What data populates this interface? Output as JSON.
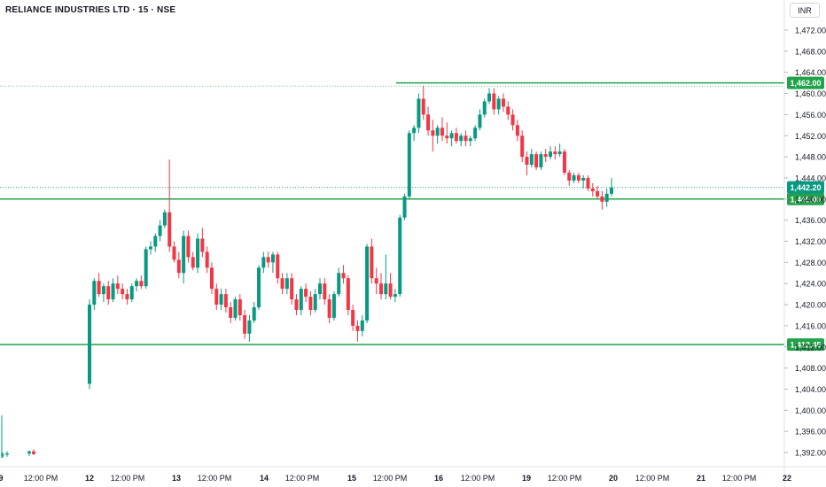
{
  "header": {
    "symbol_title": "RELIANCE INDUSTRIES LTD · 15 · NSE",
    "currency_button": "INR"
  },
  "chart_data": {
    "type": "candlestick",
    "y_axis": {
      "ticks": [
        "1,472.00",
        "1,468.00",
        "1,464.00",
        "1,460.00",
        "1,456.00",
        "1,452.00",
        "1,448.00",
        "1,444.00",
        "1,440.00",
        "1,436.00",
        "1,432.00",
        "1,428.00",
        "1,424.00",
        "1,420.00",
        "1,416.00",
        "1,412.00",
        "1,408.00",
        "1,404.00",
        "1,400.00",
        "1,396.00",
        "1,392.00"
      ],
      "range": [
        1390.5,
        1475.5
      ]
    },
    "x_axis": {
      "ticks": [
        "9",
        "12:00 PM",
        "12",
        "12:00 PM",
        "13",
        "12:00 PM",
        "14",
        "12:00 PM",
        "15",
        "12:00 PM",
        "16",
        "12:00 PM",
        "19",
        "12:00 PM",
        "20",
        "12:00 PM",
        "21",
        "12:00 PM",
        "22"
      ]
    },
    "horizontal_lines": [
      {
        "value": 1462.0,
        "label": "1,462.00",
        "style": "solid",
        "color": "#22a34a"
      },
      {
        "value": 1440.0,
        "label": "1,440.00",
        "style": "solid",
        "color": "#22a34a"
      },
      {
        "value": 1412.45,
        "label": "1,412.45",
        "style": "solid",
        "color": "#22a34a"
      }
    ],
    "last_price": {
      "value": 1442.2,
      "label": "1,442.20",
      "color": "#089981"
    },
    "colors": {
      "up": "#089981",
      "down": "#f23645"
    },
    "candles": [
      [
        1391.5,
        1392.0,
        1391.0,
        1391.6
      ],
      [
        1391.6,
        1392.2,
        1391.2,
        1391.8
      ],
      [
        1391.8,
        1392.4,
        1391.3,
        1392.2
      ],
      [
        1392.2,
        1392.6,
        1391.5,
        1391.7
      ],
      [
        1405.0,
        1421.0,
        1404.0,
        1420.0
      ],
      [
        1420.0,
        1425.0,
        1419.0,
        1424.5
      ],
      [
        1424.5,
        1426.0,
        1421.5,
        1422.0
      ],
      [
        1422.0,
        1424.0,
        1420.5,
        1423.5
      ],
      [
        1423.5,
        1424.5,
        1420.0,
        1421.0
      ],
      [
        1421.0,
        1425.0,
        1420.5,
        1424.0
      ],
      [
        1424.0,
        1425.5,
        1422.0,
        1423.0
      ],
      [
        1423.0,
        1424.0,
        1421.0,
        1422.0
      ],
      [
        1422.0,
        1423.0,
        1420.0,
        1421.0
      ],
      [
        1421.0,
        1424.0,
        1420.5,
        1423.5
      ],
      [
        1423.5,
        1425.0,
        1422.5,
        1424.5
      ],
      [
        1424.5,
        1425.5,
        1423.0,
        1423.5
      ],
      [
        1423.5,
        1431.0,
        1423.0,
        1430.5
      ],
      [
        1430.5,
        1432.0,
        1429.5,
        1431.0
      ],
      [
        1431.0,
        1433.5,
        1430.0,
        1433.0
      ],
      [
        1433.0,
        1436.0,
        1432.0,
        1435.0
      ],
      [
        1435.0,
        1438.0,
        1434.5,
        1437.5
      ],
      [
        1437.5,
        1447.5,
        1430.0,
        1431.0
      ],
      [
        1431.0,
        1432.0,
        1428.0,
        1428.5
      ],
      [
        1428.5,
        1430.0,
        1425.0,
        1426.0
      ],
      [
        1426.0,
        1434.0,
        1424.0,
        1433.0
      ],
      [
        1433.0,
        1434.0,
        1428.0,
        1429.0
      ],
      [
        1429.0,
        1430.0,
        1426.5,
        1427.0
      ],
      [
        1427.0,
        1433.5,
        1426.0,
        1432.5
      ],
      [
        1432.5,
        1434.5,
        1429.0,
        1430.0
      ],
      [
        1430.0,
        1431.0,
        1426.0,
        1427.0
      ],
      [
        1427.0,
        1428.0,
        1422.0,
        1423.0
      ],
      [
        1423.0,
        1424.0,
        1419.0,
        1420.0
      ],
      [
        1420.0,
        1423.0,
        1419.0,
        1422.0
      ],
      [
        1422.0,
        1423.0,
        1418.5,
        1419.5
      ],
      [
        1419.5,
        1420.5,
        1416.5,
        1417.5
      ],
      [
        1417.5,
        1421.5,
        1417.0,
        1421.0
      ],
      [
        1421.0,
        1422.0,
        1417.0,
        1418.0
      ],
      [
        1418.0,
        1419.0,
        1413.5,
        1414.5
      ],
      [
        1414.5,
        1418.0,
        1413.0,
        1417.0
      ],
      [
        1417.0,
        1420.5,
        1416.5,
        1419.5
      ],
      [
        1419.5,
        1427.5,
        1419.0,
        1427.0
      ],
      [
        1427.0,
        1430.0,
        1426.0,
        1429.0
      ],
      [
        1429.0,
        1430.0,
        1427.0,
        1428.0
      ],
      [
        1428.0,
        1430.0,
        1426.0,
        1429.5
      ],
      [
        1429.5,
        1430.0,
        1424.0,
        1425.0
      ],
      [
        1425.0,
        1426.0,
        1422.0,
        1423.0
      ],
      [
        1423.0,
        1426.0,
        1422.0,
        1425.0
      ],
      [
        1425.0,
        1426.0,
        1420.0,
        1421.0
      ],
      [
        1421.0,
        1422.0,
        1418.0,
        1419.0
      ],
      [
        1419.0,
        1423.5,
        1418.0,
        1423.0
      ],
      [
        1423.0,
        1424.0,
        1420.5,
        1421.5
      ],
      [
        1421.5,
        1422.5,
        1418.0,
        1419.0
      ],
      [
        1419.0,
        1423.0,
        1418.5,
        1422.0
      ],
      [
        1422.0,
        1425.0,
        1421.0,
        1424.0
      ],
      [
        1424.0,
        1425.0,
        1420.0,
        1421.0
      ],
      [
        1421.0,
        1422.0,
        1416.5,
        1417.5
      ],
      [
        1417.5,
        1422.5,
        1417.0,
        1422.0
      ],
      [
        1422.0,
        1427.0,
        1421.5,
        1426.0
      ],
      [
        1426.0,
        1427.5,
        1424.0,
        1425.0
      ],
      [
        1425.0,
        1425.5,
        1418.0,
        1419.0
      ],
      [
        1419.0,
        1420.0,
        1415.0,
        1416.0
      ],
      [
        1416.0,
        1417.0,
        1413.0,
        1415.0
      ],
      [
        1415.0,
        1418.0,
        1414.0,
        1417.0
      ],
      [
        1417.0,
        1431.5,
        1416.5,
        1431.0
      ],
      [
        1431.0,
        1432.5,
        1424.0,
        1425.0
      ],
      [
        1425.0,
        1427.0,
        1422.0,
        1424.0
      ],
      [
        1424.0,
        1426.0,
        1421.0,
        1422.0
      ],
      [
        1422.0,
        1429.5,
        1421.0,
        1424.0
      ],
      [
        1424.0,
        1426.0,
        1421.0,
        1421.5
      ],
      [
        1421.5,
        1423.0,
        1420.5,
        1422.0
      ],
      [
        1422.0,
        1437.0,
        1421.5,
        1436.5
      ],
      [
        1436.5,
        1441.0,
        1436.0,
        1440.5
      ],
      [
        1440.5,
        1453.0,
        1440.0,
        1452.5
      ],
      [
        1452.5,
        1454.0,
        1451.0,
        1453.5
      ],
      [
        1453.5,
        1460.0,
        1452.5,
        1459.0
      ],
      [
        1459.0,
        1461.5,
        1455.0,
        1456.0
      ],
      [
        1456.0,
        1457.5,
        1452.0,
        1453.0
      ],
      [
        1453.0,
        1455.0,
        1449.0,
        1452.0
      ],
      [
        1452.0,
        1454.0,
        1450.5,
        1453.5
      ],
      [
        1453.5,
        1455.5,
        1451.0,
        1452.0
      ],
      [
        1452.0,
        1454.5,
        1450.5,
        1451.5
      ],
      [
        1451.5,
        1453.0,
        1450.0,
        1452.5
      ],
      [
        1452.5,
        1453.5,
        1450.5,
        1451.0
      ],
      [
        1451.0,
        1452.5,
        1450.0,
        1452.0
      ],
      [
        1452.0,
        1453.0,
        1450.0,
        1451.0
      ],
      [
        1451.0,
        1452.0,
        1450.0,
        1451.5
      ],
      [
        1451.5,
        1454.0,
        1451.0,
        1453.5
      ],
      [
        1453.5,
        1457.0,
        1453.0,
        1456.0
      ],
      [
        1456.0,
        1459.0,
        1455.5,
        1458.5
      ],
      [
        1458.5,
        1461.0,
        1458.0,
        1460.0
      ],
      [
        1460.0,
        1461.0,
        1456.0,
        1457.0
      ],
      [
        1457.0,
        1459.5,
        1456.0,
        1459.0
      ],
      [
        1459.0,
        1460.0,
        1456.5,
        1457.5
      ],
      [
        1457.5,
        1458.5,
        1455.0,
        1456.0
      ],
      [
        1456.0,
        1457.0,
        1453.0,
        1454.0
      ],
      [
        1454.0,
        1455.0,
        1451.0,
        1452.0
      ],
      [
        1452.0,
        1453.0,
        1447.0,
        1448.0
      ],
      [
        1448.0,
        1449.0,
        1444.5,
        1446.5
      ],
      [
        1446.5,
        1449.5,
        1446.0,
        1448.5
      ],
      [
        1448.5,
        1449.0,
        1445.5,
        1446.0
      ],
      [
        1446.0,
        1449.0,
        1445.5,
        1448.5
      ],
      [
        1448.5,
        1449.5,
        1447.0,
        1448.0
      ],
      [
        1448.0,
        1450.0,
        1447.5,
        1449.0
      ],
      [
        1449.0,
        1450.0,
        1447.5,
        1448.5
      ],
      [
        1448.5,
        1450.5,
        1448.0,
        1449.0
      ],
      [
        1449.0,
        1449.5,
        1444.5,
        1445.0
      ],
      [
        1445.0,
        1445.5,
        1442.5,
        1443.5
      ],
      [
        1443.5,
        1445.0,
        1443.0,
        1444.5
      ],
      [
        1444.5,
        1445.0,
        1443.0,
        1443.5
      ],
      [
        1443.5,
        1444.5,
        1442.0,
        1444.0
      ],
      [
        1444.0,
        1444.5,
        1441.5,
        1442.0
      ],
      [
        1442.0,
        1443.0,
        1440.5,
        1441.5
      ],
      [
        1441.5,
        1442.5,
        1440.0,
        1440.5
      ],
      [
        1440.5,
        1441.5,
        1438.0,
        1439.5
      ],
      [
        1439.5,
        1442.0,
        1438.5,
        1441.0
      ],
      [
        1441.0,
        1444.0,
        1440.5,
        1442.2
      ]
    ]
  }
}
